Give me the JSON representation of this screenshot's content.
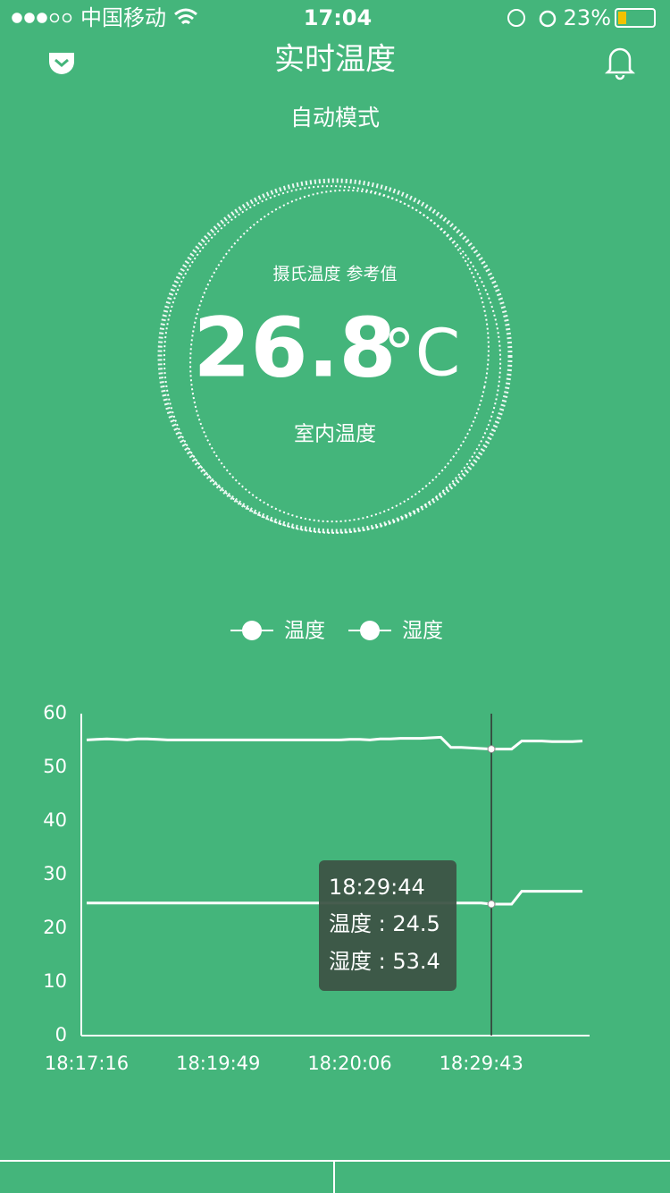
{
  "status": {
    "carrier": "中国移动",
    "time": "17:04",
    "battery": "23%"
  },
  "header": {
    "title": "实时温度",
    "mode": "自动模式"
  },
  "gauge": {
    "caption": "摄氏温度 参考值",
    "temperature": "26.8",
    "unit": "°C",
    "label": "室内温度"
  },
  "chart_data": {
    "type": "line",
    "categories": [
      "18:17:16",
      null,
      null,
      null,
      null,
      null,
      null,
      null,
      null,
      null,
      null,
      null,
      null,
      "18:19:49",
      null,
      null,
      null,
      null,
      null,
      null,
      null,
      null,
      null,
      null,
      null,
      null,
      "18:20:06",
      null,
      null,
      null,
      null,
      null,
      null,
      null,
      null,
      null,
      null,
      null,
      null,
      "18:29:43",
      null,
      null,
      null,
      null,
      null,
      null,
      null,
      null,
      null,
      null
    ],
    "series": [
      {
        "name": "温度",
        "color": "#ffffff",
        "values": [
          24.7,
          24.7,
          24.7,
          24.7,
          24.7,
          24.7,
          24.7,
          24.7,
          24.7,
          24.7,
          24.7,
          24.7,
          24.7,
          24.7,
          24.7,
          24.7,
          24.7,
          24.7,
          24.7,
          24.7,
          24.7,
          24.7,
          24.7,
          24.7,
          24.7,
          24.7,
          24.7,
          24.7,
          24.7,
          24.7,
          24.7,
          24.7,
          24.7,
          24.7,
          24.7,
          24.7,
          24.7,
          24.7,
          24.7,
          24.7,
          24.5,
          24.5,
          24.5,
          26.9,
          26.9,
          26.9,
          26.9,
          26.9,
          26.9,
          26.9
        ]
      },
      {
        "name": "湿度",
        "color": "#ffffff",
        "values": [
          55.1,
          55.2,
          55.3,
          55.2,
          55.1,
          55.3,
          55.3,
          55.2,
          55.1,
          55.1,
          55.1,
          55.1,
          55.1,
          55.1,
          55.1,
          55.1,
          55.1,
          55.1,
          55.1,
          55.1,
          55.1,
          55.1,
          55.1,
          55.1,
          55.1,
          55.1,
          55.2,
          55.2,
          55.1,
          55.3,
          55.3,
          55.4,
          55.4,
          55.4,
          55.5,
          55.6,
          53.7,
          53.7,
          53.6,
          53.5,
          53.4,
          53.4,
          53.4,
          54.9,
          54.9,
          54.9,
          54.8,
          54.8,
          54.8,
          54.9
        ]
      }
    ],
    "ylim": [
      0,
      60
    ],
    "yticks": [
      0,
      10,
      20,
      30,
      40,
      50,
      60
    ],
    "grid": false,
    "tooltip": {
      "title": "18:29:44",
      "rows": [
        "温度 : 24.5",
        "湿度 : 53.4"
      ]
    }
  }
}
